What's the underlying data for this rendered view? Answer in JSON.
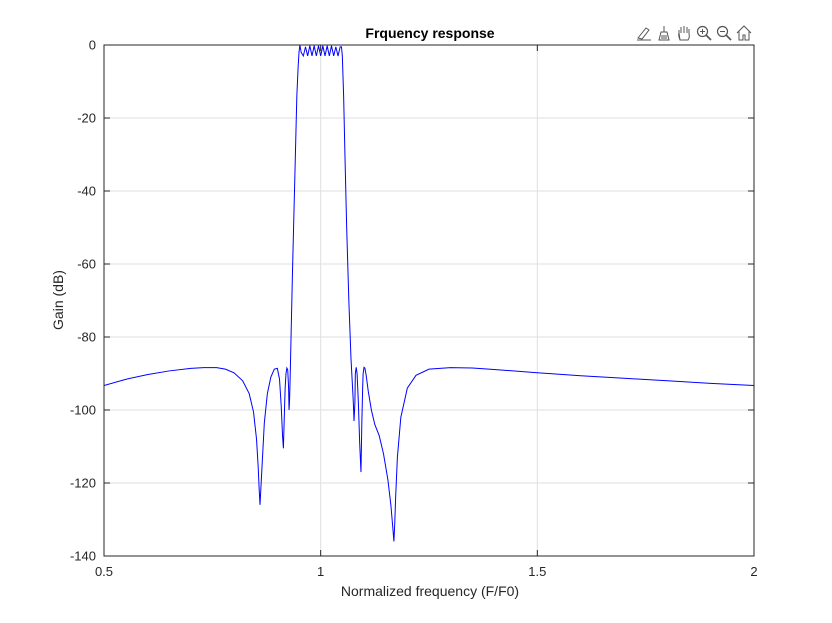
{
  "toolbar": {
    "icons": [
      "brush-edit-icon",
      "brush-clear-icon",
      "pan-hand-icon",
      "zoom-in-icon",
      "zoom-out-icon",
      "home-icon"
    ]
  },
  "chart_data": {
    "type": "line",
    "title": "Frquency response",
    "xlabel": "Normalized frequency (F/F0)",
    "ylabel": "Gain (dB)",
    "xlim": [
      0.5,
      2
    ],
    "ylim": [
      -140,
      0
    ],
    "xticks": [
      0.5,
      1,
      1.5,
      2
    ],
    "xtick_labels": [
      "0.5",
      "1",
      "1.5",
      "2"
    ],
    "yticks": [
      0,
      -20,
      -40,
      -60,
      -80,
      -100,
      -120,
      -140
    ],
    "ytick_labels": [
      "0",
      "-20",
      "-40",
      "-60",
      "-80",
      "-100",
      "-120",
      "-140"
    ],
    "grid": true,
    "line_color": "#0000ff",
    "series": [
      {
        "x": [
          0.5,
          0.55,
          0.6,
          0.65,
          0.7,
          0.73,
          0.76,
          0.78,
          0.8,
          0.82,
          0.835,
          0.845,
          0.852,
          0.856,
          0.858,
          0.86,
          0.864,
          0.87,
          0.877,
          0.885,
          0.893,
          0.9,
          0.905,
          0.909,
          0.912,
          0.914,
          0.916,
          0.918,
          0.92,
          0.922,
          0.924,
          0.926,
          0.927,
          0.928,
          0.929,
          0.93,
          0.932,
          0.935,
          0.94,
          0.945,
          0.948,
          0.95,
          0.952,
          0.955,
          0.96,
          0.965,
          0.97,
          0.975,
          0.98,
          0.985,
          0.99,
          0.995,
          1.0,
          1.005,
          1.01,
          1.015,
          1.02,
          1.025,
          1.03,
          1.035,
          1.04,
          1.045,
          1.048,
          1.05,
          1.053,
          1.056,
          1.06,
          1.065,
          1.07,
          1.075,
          1.077,
          1.079,
          1.08,
          1.082,
          1.084,
          1.087,
          1.09,
          1.093,
          1.095,
          1.097,
          1.098,
          1.1,
          1.102,
          1.105,
          1.11,
          1.117,
          1.125,
          1.135,
          1.145,
          1.155,
          1.162,
          1.167,
          1.169,
          1.171,
          1.173,
          1.177,
          1.185,
          1.2,
          1.22,
          1.25,
          1.3,
          1.35,
          1.4,
          1.5,
          1.6,
          1.7,
          1.8,
          1.9,
          2.0
        ],
        "y": [
          -93.3,
          -91.6,
          -90.3,
          -89.3,
          -88.6,
          -88.4,
          -88.4,
          -88.8,
          -89.8,
          -92.0,
          -95.5,
          -100.5,
          -108.0,
          -116.0,
          -121.5,
          -126.0,
          -117.0,
          -103.5,
          -95.5,
          -91.0,
          -88.8,
          -88.6,
          -91.5,
          -99.0,
          -107.0,
          -110.5,
          -102.0,
          -94.0,
          -90.0,
          -88.5,
          -89.0,
          -94.0,
          -100.0,
          -98.0,
          -94.0,
          -89.0,
          -78.0,
          -62.0,
          -38.0,
          -14.0,
          -6.0,
          -2.0,
          0.0,
          -2.0,
          -3.0,
          -0.5,
          -3.0,
          -0.2,
          -3.0,
          -0.2,
          -3.0,
          -0.2,
          -3.0,
          -0.2,
          -3.0,
          -0.2,
          -3.0,
          -0.2,
          -3.0,
          -0.5,
          -3.0,
          -0.5,
          -0.5,
          -3.0,
          -14.0,
          -30.0,
          -50.0,
          -70.0,
          -86.0,
          -97.0,
          -103.0,
          -98.0,
          -90.0,
          -88.3,
          -90.0,
          -98.0,
          -109.0,
          -117.0,
          -103.5,
          -93.5,
          -90.0,
          -88.3,
          -88.5,
          -90.5,
          -95.0,
          -100.0,
          -104.0,
          -107.0,
          -112.0,
          -119.0,
          -126.0,
          -133.0,
          -136.0,
          -131.0,
          -124.0,
          -113.0,
          -102.0,
          -94.0,
          -90.5,
          -88.8,
          -88.4,
          -88.5,
          -88.9,
          -89.8,
          -90.6,
          -91.3,
          -92.0,
          -92.7,
          -93.3
        ]
      }
    ]
  }
}
